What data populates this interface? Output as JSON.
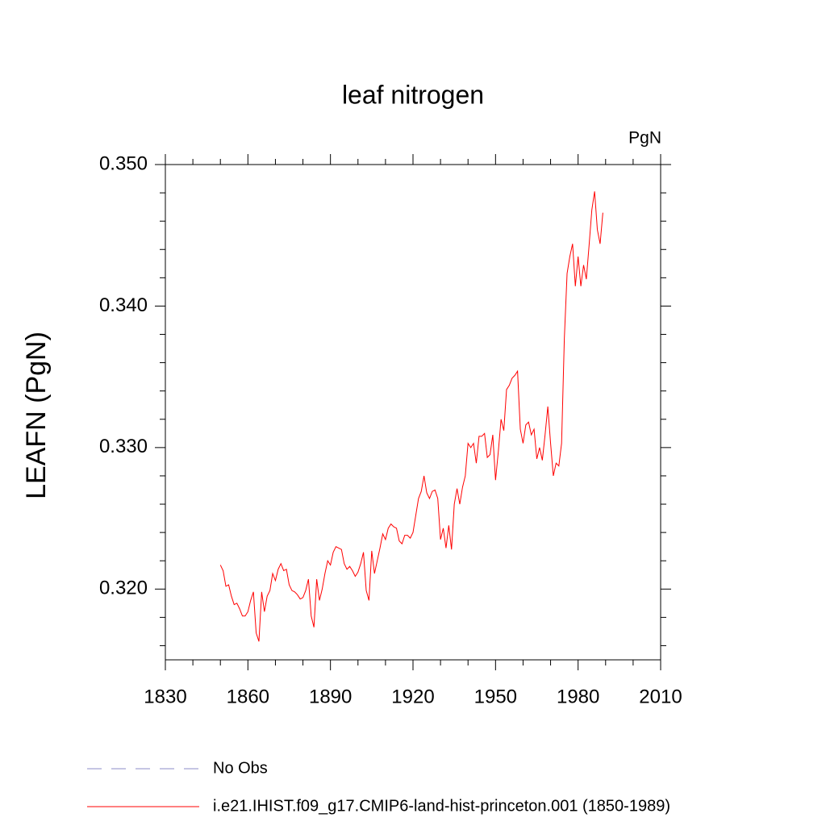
{
  "chart_data": {
    "type": "line",
    "title": "leaf nitrogen",
    "units": "PgN",
    "y_label": "LEAFN  (PgN)",
    "x": [
      1850,
      1851,
      1852,
      1853,
      1854,
      1855,
      1856,
      1857,
      1858,
      1859,
      1860,
      1861,
      1862,
      1863,
      1864,
      1865,
      1866,
      1867,
      1868,
      1869,
      1870,
      1871,
      1872,
      1873,
      1874,
      1875,
      1876,
      1877,
      1878,
      1879,
      1880,
      1881,
      1882,
      1883,
      1884,
      1885,
      1886,
      1887,
      1888,
      1889,
      1890,
      1891,
      1892,
      1893,
      1894,
      1895,
      1896,
      1897,
      1898,
      1899,
      1900,
      1901,
      1902,
      1903,
      1904,
      1905,
      1906,
      1907,
      1908,
      1909,
      1910,
      1911,
      1912,
      1913,
      1914,
      1915,
      1916,
      1917,
      1918,
      1919,
      1920,
      1921,
      1922,
      1923,
      1924,
      1925,
      1926,
      1927,
      1928,
      1929,
      1930,
      1931,
      1932,
      1933,
      1934,
      1935,
      1936,
      1937,
      1938,
      1939,
      1940,
      1941,
      1942,
      1943,
      1944,
      1945,
      1946,
      1947,
      1948,
      1949,
      1950,
      1951,
      1952,
      1953,
      1954,
      1955,
      1956,
      1957,
      1958,
      1959,
      1960,
      1961,
      1962,
      1963,
      1964,
      1965,
      1966,
      1967,
      1968,
      1969,
      1970,
      1971,
      1972,
      1973,
      1974,
      1975,
      1976,
      1977,
      1978,
      1979,
      1980,
      1981,
      1982,
      1983,
      1984,
      1985,
      1986,
      1987,
      1988,
      1989
    ],
    "series": [
      {
        "name": "No Obs",
        "color": "#8c8cc8",
        "dash": true,
        "values": [
          null,
          null,
          null,
          null,
          null,
          null,
          null,
          null,
          null,
          null,
          null,
          null,
          null,
          null,
          null,
          null,
          null,
          null,
          null,
          null,
          null,
          null,
          null,
          null,
          null,
          null,
          null,
          null,
          null,
          null,
          null,
          null,
          null,
          null,
          null,
          null,
          null,
          null,
          null,
          null,
          null,
          null,
          null,
          null,
          null,
          null,
          null,
          null,
          null,
          null,
          null,
          null,
          null,
          null,
          null,
          null,
          null,
          null,
          null,
          null,
          null,
          null,
          null,
          null,
          null,
          null,
          null,
          null,
          null,
          null,
          null,
          null,
          null,
          null,
          null,
          null,
          null,
          null,
          null,
          null,
          null,
          null,
          null,
          null,
          null,
          null,
          null,
          null,
          null,
          null,
          null,
          null,
          null,
          null,
          null,
          null,
          null,
          null,
          null,
          null,
          null,
          null,
          null,
          null,
          null,
          null,
          null,
          null,
          null,
          null,
          null,
          null,
          null,
          null,
          null,
          null,
          null,
          null,
          null,
          null,
          null,
          null,
          null,
          null,
          null,
          null,
          null,
          null,
          null,
          null,
          null,
          null,
          null,
          null,
          null,
          null,
          null,
          null,
          null,
          null
        ]
      },
      {
        "name": "i.e21.IHIST.f09_g17.CMIP6-land-hist-princeton.001 (1850-1989)",
        "color": "#ff0000",
        "dash": false,
        "values": [
          0.3217,
          0.3213,
          0.3202,
          0.3203,
          0.3195,
          0.3189,
          0.319,
          0.3186,
          0.3181,
          0.3181,
          0.3184,
          0.3192,
          0.3198,
          0.3169,
          0.3163,
          0.3198,
          0.3184,
          0.3195,
          0.3199,
          0.3211,
          0.3206,
          0.3214,
          0.3218,
          0.3213,
          0.3214,
          0.3203,
          0.3199,
          0.3198,
          0.3196,
          0.3193,
          0.3194,
          0.3199,
          0.3207,
          0.3181,
          0.3173,
          0.3207,
          0.3192,
          0.32,
          0.3211,
          0.322,
          0.3217,
          0.3226,
          0.323,
          0.3229,
          0.3228,
          0.3218,
          0.3214,
          0.3216,
          0.3213,
          0.3209,
          0.3212,
          0.3218,
          0.3226,
          0.3199,
          0.3192,
          0.3227,
          0.3211,
          0.322,
          0.3229,
          0.3239,
          0.3235,
          0.3243,
          0.3246,
          0.3244,
          0.3243,
          0.3234,
          0.3232,
          0.3238,
          0.3238,
          0.3236,
          0.324,
          0.3252,
          0.3264,
          0.3269,
          0.328,
          0.3268,
          0.3264,
          0.3269,
          0.327,
          0.3264,
          0.3235,
          0.3243,
          0.3229,
          0.3245,
          0.3228,
          0.326,
          0.3271,
          0.326,
          0.3272,
          0.328,
          0.3303,
          0.33,
          0.3303,
          0.3289,
          0.3308,
          0.3308,
          0.331,
          0.3293,
          0.3295,
          0.3309,
          0.3277,
          0.3297,
          0.332,
          0.3312,
          0.3341,
          0.3344,
          0.3349,
          0.3351,
          0.3354,
          0.3313,
          0.3303,
          0.3316,
          0.3318,
          0.3309,
          0.3313,
          0.3292,
          0.33,
          0.3291,
          0.3309,
          0.3329,
          0.3303,
          0.328,
          0.3289,
          0.3287,
          0.3303,
          0.3377,
          0.3423,
          0.3435,
          0.3444,
          0.3414,
          0.3435,
          0.3414,
          0.3429,
          0.3419,
          0.3443,
          0.3468,
          0.3481,
          0.3454,
          0.3444,
          0.3466
        ]
      }
    ],
    "xlim": [
      1830,
      2010
    ],
    "xticks": [
      1830,
      1860,
      1890,
      1920,
      1950,
      1980,
      2010
    ],
    "xminorticks": [
      1840,
      1850,
      1870,
      1880,
      1900,
      1910,
      1930,
      1940,
      1960,
      1970,
      1990,
      2000
    ],
    "ylim": [
      0.315,
      0.35
    ],
    "yticks": [
      {
        "value": 0.32,
        "label": "0.320"
      },
      {
        "value": 0.33,
        "label": "0.330"
      },
      {
        "value": 0.34,
        "label": "0.340"
      },
      {
        "value": 0.35,
        "label": "0.350"
      }
    ],
    "yminorticks": [
      0.316,
      0.318,
      0.322,
      0.324,
      0.326,
      0.328,
      0.332,
      0.334,
      0.336,
      0.338,
      0.342,
      0.344,
      0.346,
      0.348
    ]
  }
}
